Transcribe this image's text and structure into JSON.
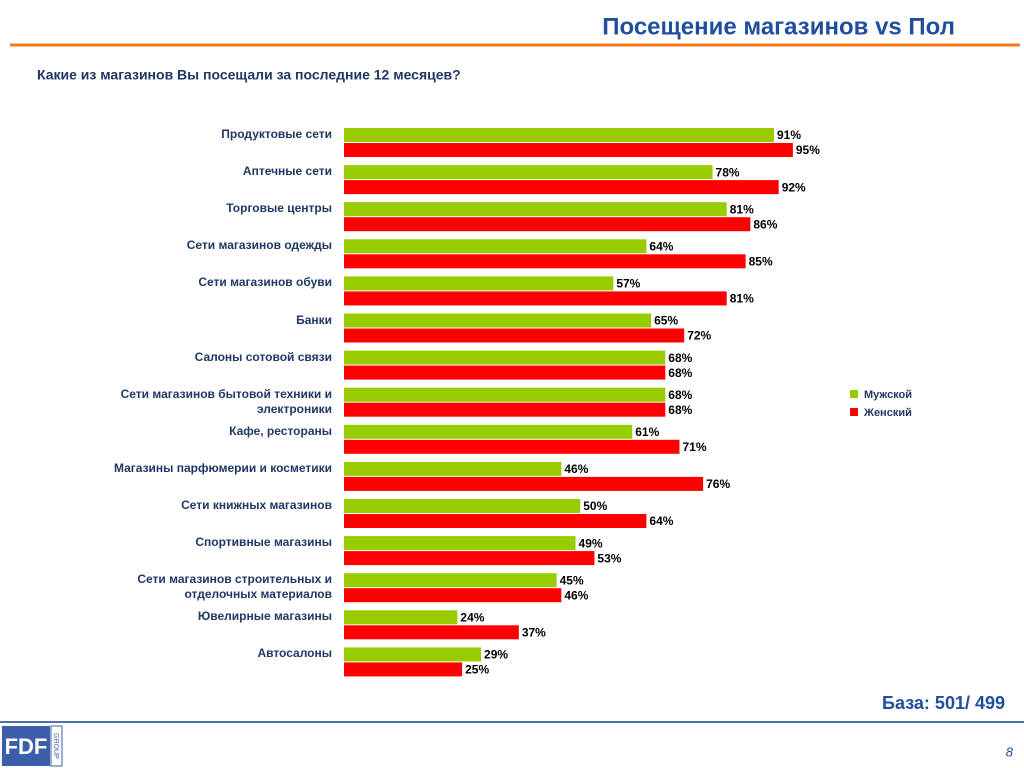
{
  "chart_data": {
    "type": "bar",
    "orientation": "horizontal",
    "title": "Посещение магазинов vs Пол",
    "subtitle": "Какие из магазинов Вы посещали за последние 12 месяцев?",
    "categories": [
      "Продуктовые сети",
      "Аптечные сети",
      "Торговые центры",
      "Сети магазинов одежды",
      "Сети магазинов обуви",
      "Банки",
      "Салоны сотовой связи",
      "Сети магазинов бытовой техники и электроники",
      "Кафе, рестораны",
      "Магазины парфюмерии и косметики",
      "Сети книжных магазинов",
      "Спортивные магазины",
      "Сети магазинов строительных и отделочных материалов",
      "Ювелирные магазины",
      "Автосалоны"
    ],
    "series": [
      {
        "name": "Мужской",
        "color": "#99cc00",
        "values": [
          91,
          78,
          81,
          64,
          57,
          65,
          68,
          68,
          61,
          46,
          50,
          49,
          45,
          24,
          29
        ],
        "value_labels": [
          "91%",
          "78%",
          "81%",
          "64%",
          "57%",
          "65%",
          "68%",
          "68%",
          "61%",
          "46%",
          "50%",
          "49%",
          "45%",
          "24%",
          "29%"
        ]
      },
      {
        "name": "Женский",
        "color": "#ff0000",
        "values": [
          95,
          92,
          86,
          85,
          81,
          72,
          68,
          68,
          71,
          76,
          64,
          53,
          46,
          37,
          25
        ],
        "value_labels": [
          "95%",
          "92%",
          "86%",
          "85%",
          "81%",
          "72%",
          "68%",
          "68%",
          "71%",
          "76%",
          "64%",
          "53%",
          "46%",
          "37%",
          "25%"
        ]
      }
    ],
    "xlim": [
      0,
      100
    ],
    "grid": false,
    "legend": "right"
  },
  "footer": {
    "base": "База: 501/ 499",
    "page_number": "8",
    "logo": "FDF",
    "logo_sub": "GROUP"
  }
}
